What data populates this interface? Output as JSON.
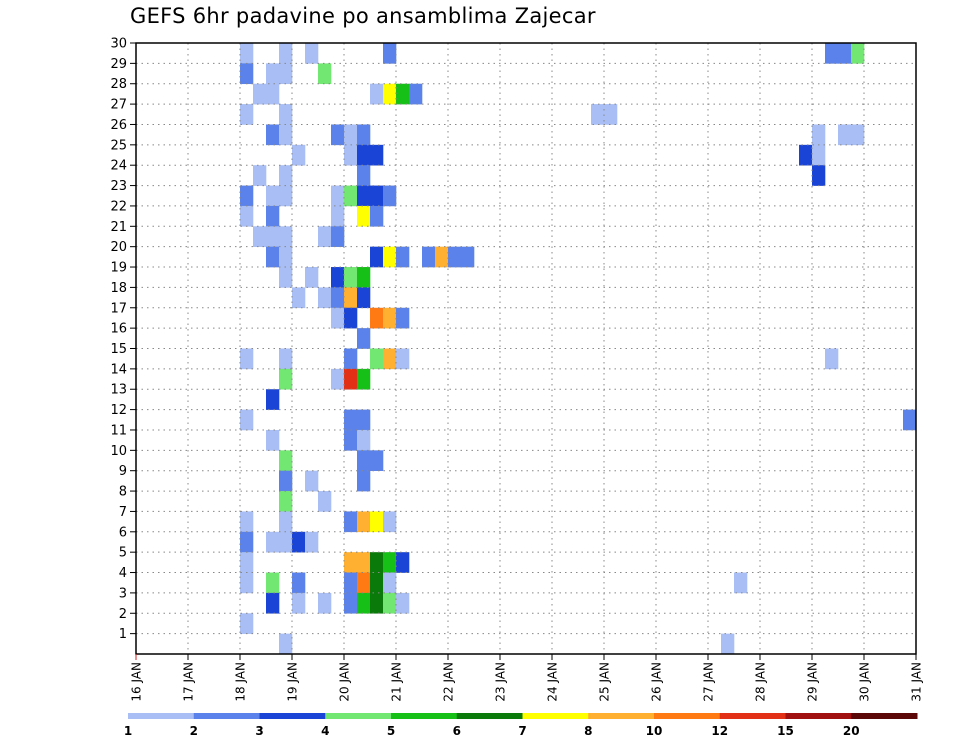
{
  "chart_data": {
    "type": "heatmap",
    "title": "GEFS 6hr padavine po ansamblima Zajecar",
    "x_tick_labels": [
      "16 JAN",
      "17 JAN",
      "18 JAN",
      "19 JAN",
      "20 JAN",
      "21 JAN",
      "22 JAN",
      "23 JAN",
      "24 JAN",
      "25 JAN",
      "26 JAN",
      "27 JAN",
      "28 JAN",
      "29 JAN",
      "30 JAN",
      "31 JAN"
    ],
    "y_tick_labels": [
      "1",
      "2",
      "3",
      "4",
      "5",
      "6",
      "7",
      "8",
      "9",
      "10",
      "11",
      "12",
      "13",
      "14",
      "15",
      "16",
      "17",
      "18",
      "19",
      "20",
      "21",
      "22",
      "23",
      "24",
      "25",
      "26",
      "27",
      "28",
      "29",
      "30"
    ],
    "xlim": [
      "16 JAN",
      "31 JAN"
    ],
    "ylim": [
      0,
      30
    ],
    "grid": true,
    "colorbar": {
      "labels": [
        "1",
        "2",
        "3",
        "4",
        "5",
        "6",
        "7",
        "8",
        "10",
        "12",
        "15",
        "20"
      ],
      "colors": [
        "#a8bef5",
        "#5a82ea",
        "#1a44d6",
        "#72e872",
        "#16c016",
        "#0a7a0a",
        "#ffff00",
        "#ffb030",
        "#ff7a12",
        "#e23016",
        "#a01010",
        "#5c0707"
      ]
    },
    "cell_hours": 6,
    "cells": [
      {
        "m": 30,
        "t": "18 JAN 00",
        "v": 1
      },
      {
        "m": 30,
        "t": "18 JAN 18",
        "v": 1
      },
      {
        "m": 30,
        "t": "19 JAN 06",
        "v": 1
      },
      {
        "m": 30,
        "t": "20 JAN 18",
        "v": 2
      },
      {
        "m": 30,
        "t": "29 JAN 06",
        "v": 2
      },
      {
        "m": 30,
        "t": "29 JAN 12",
        "v": 2
      },
      {
        "m": 30,
        "t": "29 JAN 18",
        "v": 4
      },
      {
        "m": 29,
        "t": "18 JAN 00",
        "v": 2
      },
      {
        "m": 29,
        "t": "18 JAN 12",
        "v": 1
      },
      {
        "m": 29,
        "t": "18 JAN 18",
        "v": 1
      },
      {
        "m": 29,
        "t": "19 JAN 12",
        "v": 4
      },
      {
        "m": 28,
        "t": "18 JAN 06",
        "v": 1
      },
      {
        "m": 28,
        "t": "18 JAN 12",
        "v": 1
      },
      {
        "m": 28,
        "t": "20 JAN 12",
        "v": 1
      },
      {
        "m": 28,
        "t": "20 JAN 18",
        "v": 7
      },
      {
        "m": 28,
        "t": "21 JAN 00",
        "v": 5
      },
      {
        "m": 28,
        "t": "21 JAN 06",
        "v": 2
      },
      {
        "m": 27,
        "t": "18 JAN 00",
        "v": 1
      },
      {
        "m": 27,
        "t": "18 JAN 18",
        "v": 1
      },
      {
        "m": 27,
        "t": "24 JAN 18",
        "v": 1
      },
      {
        "m": 27,
        "t": "25 JAN 00",
        "v": 1
      },
      {
        "m": 26,
        "t": "18 JAN 12",
        "v": 2
      },
      {
        "m": 26,
        "t": "18 JAN 18",
        "v": 1
      },
      {
        "m": 26,
        "t": "19 JAN 18",
        "v": 2
      },
      {
        "m": 26,
        "t": "20 JAN 00",
        "v": 1
      },
      {
        "m": 26,
        "t": "20 JAN 06",
        "v": 2
      },
      {
        "m": 26,
        "t": "29 JAN 00",
        "v": 1
      },
      {
        "m": 26,
        "t": "29 JAN 12",
        "v": 1
      },
      {
        "m": 26,
        "t": "29 JAN 18",
        "v": 1
      },
      {
        "m": 25,
        "t": "19 JAN 00",
        "v": 1
      },
      {
        "m": 25,
        "t": "20 JAN 00",
        "v": 1
      },
      {
        "m": 25,
        "t": "20 JAN 06",
        "v": 3
      },
      {
        "m": 25,
        "t": "20 JAN 12",
        "v": 3
      },
      {
        "m": 25,
        "t": "28 JAN 18",
        "v": 3
      },
      {
        "m": 25,
        "t": "29 JAN 00",
        "v": 1
      },
      {
        "m": 24,
        "t": "18 JAN 06",
        "v": 1
      },
      {
        "m": 24,
        "t": "18 JAN 18",
        "v": 1
      },
      {
        "m": 24,
        "t": "20 JAN 06",
        "v": 2
      },
      {
        "m": 24,
        "t": "29 JAN 00",
        "v": 3
      },
      {
        "m": 23,
        "t": "18 JAN 00",
        "v": 2
      },
      {
        "m": 23,
        "t": "18 JAN 12",
        "v": 1
      },
      {
        "m": 23,
        "t": "18 JAN 18",
        "v": 1
      },
      {
        "m": 23,
        "t": "19 JAN 18",
        "v": 1
      },
      {
        "m": 23,
        "t": "20 JAN 00",
        "v": 4
      },
      {
        "m": 23,
        "t": "20 JAN 06",
        "v": 3
      },
      {
        "m": 23,
        "t": "20 JAN 12",
        "v": 3
      },
      {
        "m": 23,
        "t": "20 JAN 18",
        "v": 2
      },
      {
        "m": 22,
        "t": "18 JAN 00",
        "v": 1
      },
      {
        "m": 22,
        "t": "18 JAN 12",
        "v": 2
      },
      {
        "m": 22,
        "t": "19 JAN 18",
        "v": 1
      },
      {
        "m": 22,
        "t": "20 JAN 06",
        "v": 7
      },
      {
        "m": 22,
        "t": "20 JAN 12",
        "v": 2
      },
      {
        "m": 21,
        "t": "18 JAN 06",
        "v": 1
      },
      {
        "m": 21,
        "t": "18 JAN 12",
        "v": 1
      },
      {
        "m": 21,
        "t": "18 JAN 18",
        "v": 1
      },
      {
        "m": 21,
        "t": "19 JAN 12",
        "v": 1
      },
      {
        "m": 21,
        "t": "19 JAN 18",
        "v": 2
      },
      {
        "m": 20,
        "t": "18 JAN 12",
        "v": 2
      },
      {
        "m": 20,
        "t": "18 JAN 18",
        "v": 1
      },
      {
        "m": 20,
        "t": "20 JAN 12",
        "v": 3
      },
      {
        "m": 20,
        "t": "20 JAN 18",
        "v": 7
      },
      {
        "m": 20,
        "t": "21 JAN 00",
        "v": 2
      },
      {
        "m": 20,
        "t": "21 JAN 12",
        "v": 2
      },
      {
        "m": 20,
        "t": "21 JAN 18",
        "v": 8
      },
      {
        "m": 20,
        "t": "22 JAN 00",
        "v": 2
      },
      {
        "m": 20,
        "t": "22 JAN 06",
        "v": 2
      },
      {
        "m": 19,
        "t": "18 JAN 18",
        "v": 1
      },
      {
        "m": 19,
        "t": "19 JAN 06",
        "v": 1
      },
      {
        "m": 19,
        "t": "19 JAN 18",
        "v": 3
      },
      {
        "m": 19,
        "t": "20 JAN 00",
        "v": 4
      },
      {
        "m": 19,
        "t": "20 JAN 06",
        "v": 5
      },
      {
        "m": 18,
        "t": "19 JAN 00",
        "v": 1
      },
      {
        "m": 18,
        "t": "19 JAN 12",
        "v": 1
      },
      {
        "m": 18,
        "t": "19 JAN 18",
        "v": 2
      },
      {
        "m": 18,
        "t": "20 JAN 00",
        "v": 8
      },
      {
        "m": 18,
        "t": "20 JAN 06",
        "v": 3
      },
      {
        "m": 17,
        "t": "19 JAN 18",
        "v": 1
      },
      {
        "m": 17,
        "t": "20 JAN 00",
        "v": 3
      },
      {
        "m": 17,
        "t": "20 JAN 12",
        "v": 10
      },
      {
        "m": 17,
        "t": "20 JAN 18",
        "v": 8
      },
      {
        "m": 17,
        "t": "21 JAN 00",
        "v": 2
      },
      {
        "m": 16,
        "t": "20 JAN 06",
        "v": 2
      },
      {
        "m": 15,
        "t": "18 JAN 00",
        "v": 1
      },
      {
        "m": 15,
        "t": "18 JAN 18",
        "v": 1
      },
      {
        "m": 15,
        "t": "20 JAN 00",
        "v": 2
      },
      {
        "m": 15,
        "t": "20 JAN 12",
        "v": 4
      },
      {
        "m": 15,
        "t": "20 JAN 18",
        "v": 8
      },
      {
        "m": 15,
        "t": "21 JAN 00",
        "v": 1
      },
      {
        "m": 15,
        "t": "29 JAN 06",
        "v": 1
      },
      {
        "m": 14,
        "t": "18 JAN 18",
        "v": 4
      },
      {
        "m": 14,
        "t": "19 JAN 18",
        "v": 1
      },
      {
        "m": 14,
        "t": "20 JAN 00",
        "v": 12
      },
      {
        "m": 14,
        "t": "20 JAN 06",
        "v": 5
      },
      {
        "m": 13,
        "t": "18 JAN 12",
        "v": 3
      },
      {
        "m": 12,
        "t": "18 JAN 00",
        "v": 1
      },
      {
        "m": 12,
        "t": "20 JAN 00",
        "v": 2
      },
      {
        "m": 12,
        "t": "20 JAN 06",
        "v": 2
      },
      {
        "m": 12,
        "t": "30 JAN 18",
        "v": 2
      },
      {
        "m": 11,
        "t": "18 JAN 12",
        "v": 1
      },
      {
        "m": 11,
        "t": "20 JAN 00",
        "v": 2
      },
      {
        "m": 11,
        "t": "20 JAN 06",
        "v": 1
      },
      {
        "m": 10,
        "t": "18 JAN 18",
        "v": 4
      },
      {
        "m": 10,
        "t": "20 JAN 06",
        "v": 2
      },
      {
        "m": 10,
        "t": "20 JAN 12",
        "v": 2
      },
      {
        "m": 9,
        "t": "18 JAN 18",
        "v": 2
      },
      {
        "m": 9,
        "t": "19 JAN 06",
        "v": 1
      },
      {
        "m": 9,
        "t": "20 JAN 06",
        "v": 2
      },
      {
        "m": 8,
        "t": "18 JAN 18",
        "v": 4
      },
      {
        "m": 8,
        "t": "19 JAN 12",
        "v": 1
      },
      {
        "m": 7,
        "t": "18 JAN 00",
        "v": 1
      },
      {
        "m": 7,
        "t": "18 JAN 18",
        "v": 1
      },
      {
        "m": 7,
        "t": "20 JAN 00",
        "v": 2
      },
      {
        "m": 7,
        "t": "20 JAN 06",
        "v": 8
      },
      {
        "m": 7,
        "t": "20 JAN 12",
        "v": 7
      },
      {
        "m": 7,
        "t": "20 JAN 18",
        "v": 1
      },
      {
        "m": 6,
        "t": "18 JAN 00",
        "v": 2
      },
      {
        "m": 6,
        "t": "18 JAN 12",
        "v": 1
      },
      {
        "m": 6,
        "t": "18 JAN 18",
        "v": 1
      },
      {
        "m": 6,
        "t": "19 JAN 00",
        "v": 3
      },
      {
        "m": 6,
        "t": "19 JAN 06",
        "v": 1
      },
      {
        "m": 5,
        "t": "18 JAN 00",
        "v": 1
      },
      {
        "m": 5,
        "t": "20 JAN 00",
        "v": 8
      },
      {
        "m": 5,
        "t": "20 JAN 06",
        "v": 8
      },
      {
        "m": 5,
        "t": "20 JAN 12",
        "v": 6
      },
      {
        "m": 5,
        "t": "20 JAN 18",
        "v": 5
      },
      {
        "m": 5,
        "t": "21 JAN 00",
        "v": 3
      },
      {
        "m": 4,
        "t": "18 JAN 00",
        "v": 1
      },
      {
        "m": 4,
        "t": "18 JAN 12",
        "v": 4
      },
      {
        "m": 4,
        "t": "19 JAN 00",
        "v": 2
      },
      {
        "m": 4,
        "t": "20 JAN 00",
        "v": 2
      },
      {
        "m": 4,
        "t": "20 JAN 06",
        "v": 10
      },
      {
        "m": 4,
        "t": "20 JAN 12",
        "v": 6
      },
      {
        "m": 4,
        "t": "20 JAN 18",
        "v": 1
      },
      {
        "m": 4,
        "t": "27 JAN 12",
        "v": 1
      },
      {
        "m": 3,
        "t": "18 JAN 12",
        "v": 3
      },
      {
        "m": 3,
        "t": "19 JAN 00",
        "v": 1
      },
      {
        "m": 3,
        "t": "19 JAN 12",
        "v": 1
      },
      {
        "m": 3,
        "t": "20 JAN 00",
        "v": 2
      },
      {
        "m": 3,
        "t": "20 JAN 06",
        "v": 5
      },
      {
        "m": 3,
        "t": "20 JAN 12",
        "v": 6
      },
      {
        "m": 3,
        "t": "20 JAN 18",
        "v": 4
      },
      {
        "m": 3,
        "t": "21 JAN 00",
        "v": 1
      },
      {
        "m": 2,
        "t": "18 JAN 00",
        "v": 1
      },
      {
        "m": 1,
        "t": "18 JAN 18",
        "v": 1
      },
      {
        "m": 1,
        "t": "27 JAN 06",
        "v": 1
      }
    ]
  }
}
